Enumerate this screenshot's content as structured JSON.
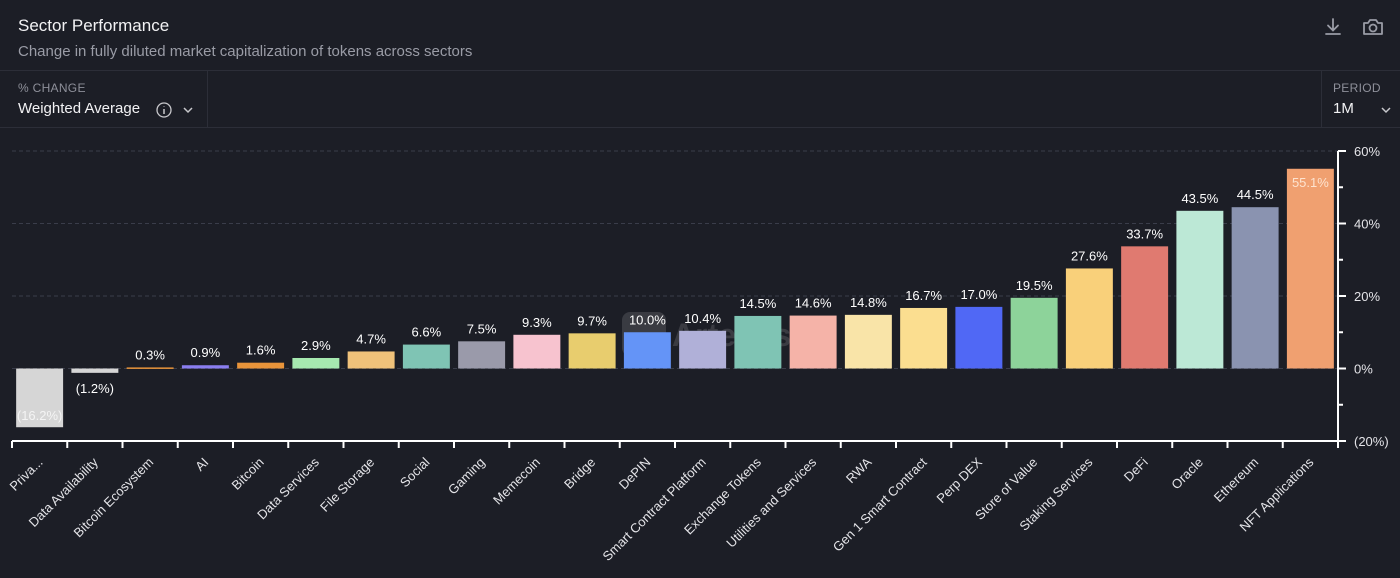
{
  "header": {
    "title": "Sector Performance",
    "subtitle": "Change in fully diluted market capitalization of tokens across sectors",
    "icons": [
      "download-icon",
      "camera-icon"
    ]
  },
  "controls": {
    "change": {
      "label": "% CHANGE",
      "value": "Weighted Average",
      "icon": "info-icon"
    },
    "period": {
      "label": "PERIOD",
      "value": "1M"
    }
  },
  "watermark": "Artemis",
  "chart_data": {
    "type": "bar",
    "title": "",
    "xlabel": "",
    "ylabel": "",
    "ylim": [
      -20,
      60
    ],
    "yticks": [
      60,
      40,
      20,
      0,
      -20
    ],
    "ytick_labels": [
      "60%",
      "40%",
      "20%",
      "0%",
      "(20%)"
    ],
    "grid": true,
    "categories": [
      "Priva...",
      "Data Availability",
      "Bitcoin Ecosystem",
      "AI",
      "Bitcoin",
      "Data Services",
      "File Storage",
      "Social",
      "Gaming",
      "Memecoin",
      "Bridge",
      "DePIN",
      "Smart Contract Platform",
      "Exchange Tokens",
      "Utilities and Services",
      "RWA",
      "Gen 1 Smart Contract",
      "Perp DEX",
      "Store of Value",
      "Staking Services",
      "DeFi",
      "Oracle",
      "Ethereum",
      "NFT Applications"
    ],
    "values": [
      -16.2,
      -1.2,
      0.3,
      0.9,
      1.6,
      2.9,
      4.7,
      6.6,
      7.5,
      9.3,
      9.7,
      10.0,
      10.4,
      14.5,
      14.6,
      14.8,
      16.7,
      17.0,
      19.5,
      27.6,
      33.7,
      43.5,
      44.5,
      55.1
    ],
    "labels": [
      "(16.2%)",
      "(1.2%)",
      "0.3%",
      "0.9%",
      "1.6%",
      "2.9%",
      "4.7%",
      "6.6%",
      "7.5%",
      "9.3%",
      "9.7%",
      "10.0%",
      "10.4%",
      "14.5%",
      "14.6%",
      "14.8%",
      "16.7%",
      "17.0%",
      "19.5%",
      "27.6%",
      "33.7%",
      "43.5%",
      "44.5%",
      "55.1%"
    ],
    "colors": [
      "#d6d6d6",
      "#d6d6d6",
      "#e8943a",
      "#8a7ef0",
      "#e8943a",
      "#a6e9b0",
      "#f0c27a",
      "#7fc4b4",
      "#9a9aaa",
      "#f7c3cf",
      "#e8cd6e",
      "#6494f7",
      "#b0b0d8",
      "#7fc4b4",
      "#f5b3a8",
      "#f9e4a8",
      "#fbde90",
      "#5068f5",
      "#8dd39a",
      "#f9d07a",
      "#e07a70",
      "#bce8d6",
      "#8a93b0",
      "#f0a070"
    ]
  }
}
